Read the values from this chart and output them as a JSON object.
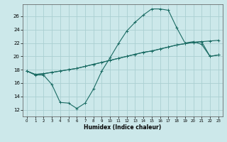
{
  "xlabel": "Humidex (Indice chaleur)",
  "bg_color": "#cce8ea",
  "grid_color": "#aacfd2",
  "line_color": "#1a6b63",
  "x_ticks": [
    0,
    1,
    2,
    3,
    4,
    5,
    6,
    7,
    8,
    9,
    10,
    11,
    12,
    13,
    14,
    15,
    16,
    17,
    18,
    19,
    20,
    21,
    22,
    23
  ],
  "y_ticks": [
    12,
    14,
    16,
    18,
    20,
    22,
    24,
    26
  ],
  "ylim": [
    11.0,
    27.8
  ],
  "xlim": [
    -0.5,
    23.5
  ],
  "curve1_x": [
    0,
    1,
    2,
    3,
    4,
    5,
    6,
    7,
    8,
    9,
    10,
    11,
    12,
    13,
    14,
    15,
    16,
    17,
    18,
    19,
    20,
    21,
    22,
    23
  ],
  "curve1_y": [
    17.8,
    17.2,
    17.2,
    15.8,
    13.1,
    13.0,
    12.2,
    13.0,
    15.1,
    17.8,
    19.8,
    21.9,
    23.8,
    25.1,
    26.2,
    27.1,
    27.1,
    26.9,
    24.3,
    22.0,
    22.2,
    21.8,
    20.0,
    20.2
  ],
  "curve2_x": [
    0,
    1,
    2,
    3,
    4,
    5,
    6,
    7,
    8,
    9,
    10,
    11,
    12,
    13,
    14,
    15,
    16,
    17,
    18,
    19,
    20,
    21,
    22,
    23
  ],
  "curve2_y": [
    17.8,
    17.3,
    17.4,
    17.6,
    17.8,
    18.0,
    18.2,
    18.5,
    18.8,
    19.1,
    19.4,
    19.7,
    20.0,
    20.3,
    20.6,
    20.8,
    21.1,
    21.4,
    21.7,
    21.9,
    22.1,
    22.2,
    22.3,
    22.4
  ],
  "curve3_x": [
    0,
    1,
    2,
    3,
    4,
    5,
    6,
    7,
    8,
    9,
    10,
    11,
    12,
    13,
    14,
    15,
    16,
    17,
    18,
    19,
    20,
    21,
    22,
    23
  ],
  "curve3_y": [
    17.8,
    17.3,
    17.4,
    17.6,
    17.8,
    18.0,
    18.2,
    18.5,
    18.8,
    19.1,
    19.4,
    19.7,
    20.0,
    20.3,
    20.6,
    20.8,
    21.1,
    21.4,
    21.7,
    21.9,
    22.1,
    22.2,
    20.0,
    20.2
  ]
}
